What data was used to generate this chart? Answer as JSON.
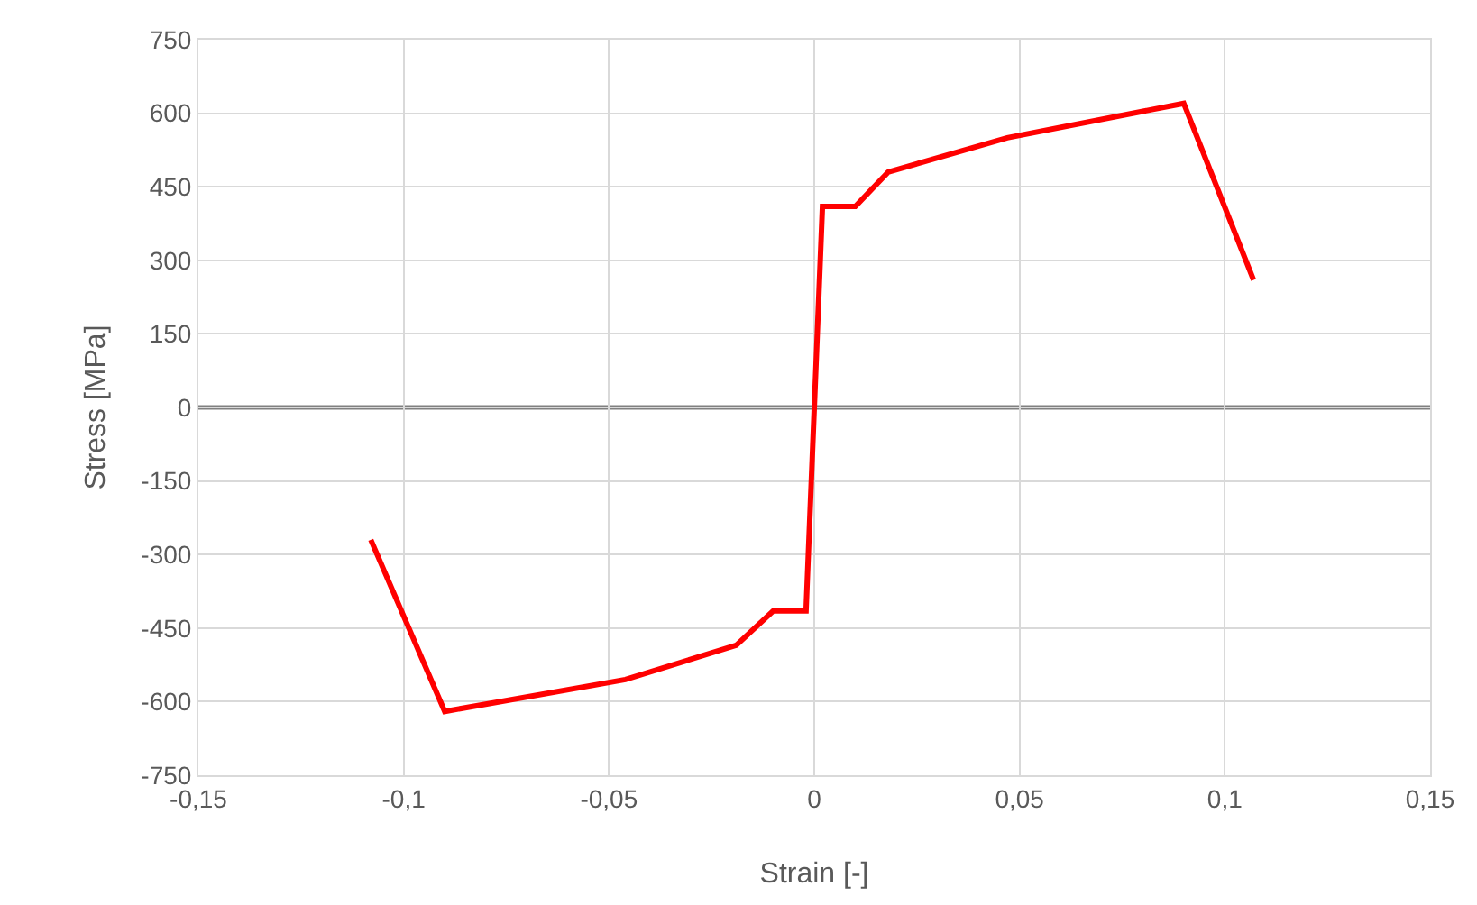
{
  "chart_data": {
    "type": "line",
    "xlabel": "Strain [-]",
    "ylabel": "Stress [MPa]",
    "x": [
      -0.108,
      -0.09,
      -0.046,
      -0.019,
      -0.01,
      -0.002,
      0.002,
      0.01,
      0.018,
      0.047,
      0.09,
      0.107
    ],
    "series": [
      {
        "color": "#ff0000",
        "values": [
          -270,
          -620,
          -555,
          -485,
          -415,
          -415,
          410,
          410,
          480,
          550,
          620,
          260
        ]
      }
    ],
    "xlim": [
      -0.15,
      0.15
    ],
    "xticks": [
      {
        "value": -0.15,
        "label": "-0,15"
      },
      {
        "value": -0.1,
        "label": "-0,1"
      },
      {
        "value": -0.05,
        "label": "-0,05"
      },
      0,
      {
        "value": 0.05,
        "label": "0,05"
      },
      {
        "value": 0.1,
        "label": "0,1"
      },
      {
        "value": 0.15,
        "label": "0,15"
      }
    ],
    "ylim": [
      -750,
      750
    ],
    "yticks": [
      -750,
      -600,
      -450,
      -300,
      -150,
      0,
      150,
      300,
      450,
      600,
      750
    ],
    "ref_lines": [
      {
        "axis": "y",
        "value": 0,
        "color": "#808080"
      }
    ],
    "grid": true,
    "legend": false,
    "marker": "none",
    "line_style": "solid"
  }
}
